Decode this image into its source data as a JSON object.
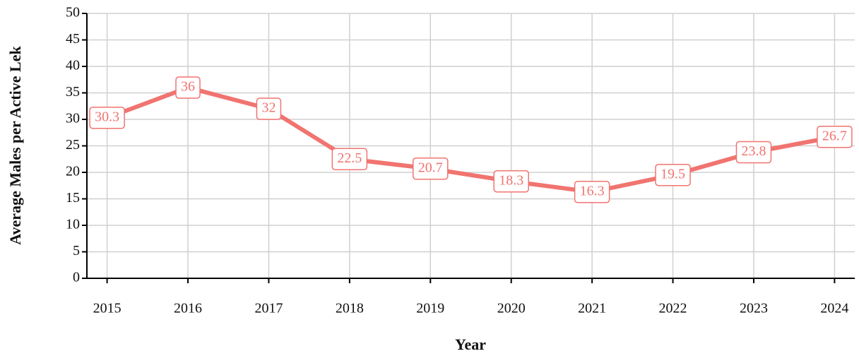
{
  "chart_data": {
    "type": "line",
    "x_label": "Year",
    "y_label": "Average Males per Active Lek",
    "x": [
      2015,
      2016,
      2017,
      2018,
      2019,
      2020,
      2021,
      2022,
      2023,
      2024
    ],
    "series": [
      {
        "color": "#f07470",
        "values": [
          30.3,
          36,
          32,
          22.5,
          20.7,
          18.3,
          16.3,
          19.5,
          23.8,
          26.7
        ]
      }
    ],
    "xlim": [
      2014.75,
      2024.25
    ],
    "xticks": [
      2015,
      2016,
      2017,
      2018,
      2019,
      2020,
      2021,
      2022,
      2023,
      2024
    ],
    "ylim": [
      0,
      50
    ],
    "yticks": [
      0,
      5,
      10,
      15,
      20,
      25,
      30,
      35,
      40,
      45,
      50
    ],
    "grid": true
  }
}
